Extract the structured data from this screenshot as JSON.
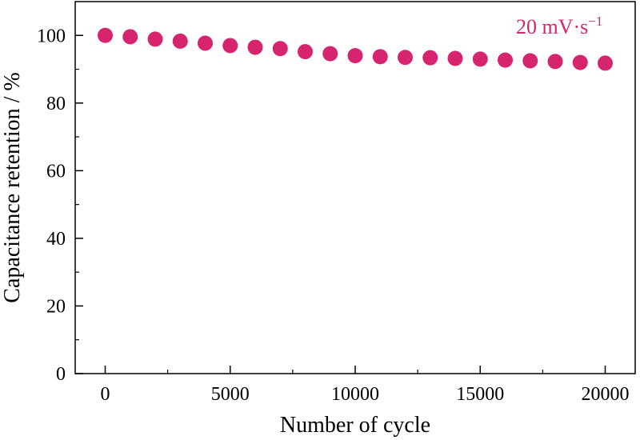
{
  "chart_data": {
    "type": "scatter",
    "xlabel": "Number of cycle",
    "ylabel": "Capacitance retention / %",
    "xlim": [
      -1200,
      21200
    ],
    "ylim": [
      0,
      110
    ],
    "x_ticks": [
      0,
      5000,
      10000,
      15000,
      20000
    ],
    "x_tick_labels": [
      "0",
      "5000",
      "10000",
      "15000",
      "20000"
    ],
    "y_ticks": [
      0,
      20,
      40,
      60,
      80,
      100
    ],
    "y_tick_labels": [
      "0",
      "20",
      "40",
      "60",
      "80",
      "100"
    ],
    "grid": false,
    "annotation": {
      "text": "20 mV·s",
      "superscript": "−1",
      "position": "top-right"
    },
    "series": [
      {
        "color": "#d6246e",
        "marker": "circle",
        "x": [
          0,
          1000,
          2000,
          3000,
          4000,
          5000,
          6000,
          7000,
          8000,
          9000,
          10000,
          11000,
          12000,
          13000,
          14000,
          15000,
          16000,
          17000,
          18000,
          19000,
          20000
        ],
        "y": [
          100.0,
          99.6,
          98.9,
          98.3,
          97.7,
          97.0,
          96.5,
          96.1,
          95.2,
          94.6,
          94.0,
          93.7,
          93.5,
          93.4,
          93.2,
          93.0,
          92.7,
          92.5,
          92.3,
          92.0,
          91.8
        ]
      }
    ]
  }
}
